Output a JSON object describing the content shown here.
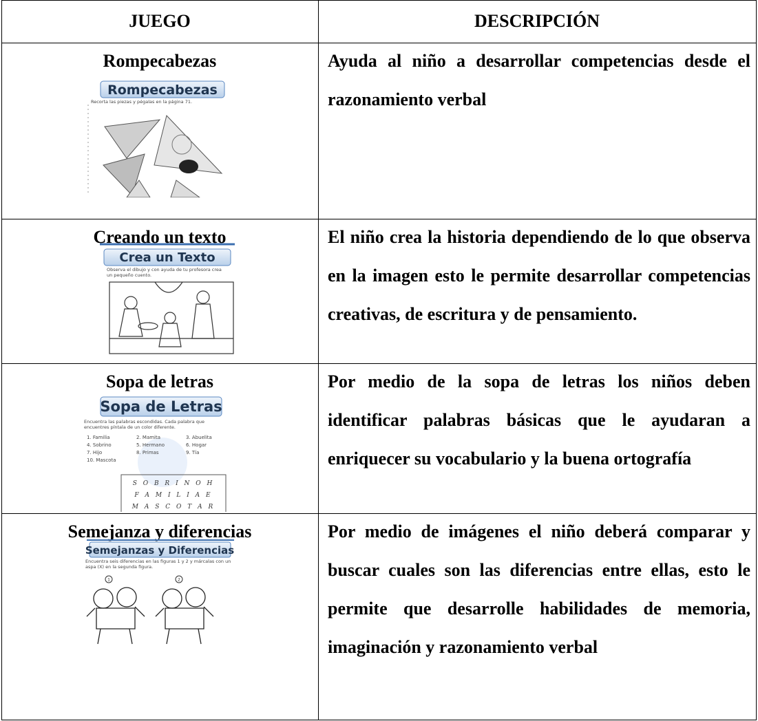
{
  "table": {
    "header": [
      "JUEGO",
      "DESCRIPCIÓN"
    ],
    "rows": [
      {
        "game": "Rompecabezas",
        "image": {
          "heading": "Rompecabezas",
          "instruction": "Recorta las piezas y pégalas en la página 71."
        },
        "description": "Ayuda al niño a desarrollar competencias desde el razonamiento verbal"
      },
      {
        "game": "Creando un texto",
        "image": {
          "heading": "Crea un Texto",
          "instruction": "Observa el dibujo y con ayuda de tu profesora crea un pequeño cuento."
        },
        "description": "El niño crea la historia dependiendo de lo que observa en la imagen esto le permite desarrollar competencias creativas, de escritura y de pensamiento."
      },
      {
        "game": "Sopa de letras",
        "image": {
          "heading": "Sopa de Letras",
          "instruction": "Encuentra las palabras escondidas. Cada palabra que encuentres píntala de un color diferente.",
          "words": [
            "1. Familia",
            "2. Mamita",
            "3. Abuelita",
            "4. Sobrino",
            "5. Hermano",
            "6. Hogar",
            "7. Hijo",
            "8. Primas",
            "9. Tía",
            "10. Mascota"
          ],
          "grid": [
            "S O B R I N O H",
            "F A M I L I A E",
            "M A S C O T A R"
          ]
        },
        "description": "Por medio de la sopa de letras los niños deben identificar palabras básicas que le ayudaran a enriquecer su vocabulario y la buena ortografía"
      },
      {
        "game": "Semejanza y diferencias",
        "image": {
          "heading": "Semejanzas y Diferencias",
          "instruction": "Encuentra seis diferencias en las figuras 1 y 2 y márcalas con un aspa (X) en la segunda figura.",
          "labels": [
            "1",
            "2"
          ]
        },
        "description": "Por medio de imágenes el niño deberá comparar y buscar cuales son las diferencias entre ellas, esto le permite que desarrolle habilidades de memoria, imaginación y razonamiento verbal"
      }
    ]
  }
}
